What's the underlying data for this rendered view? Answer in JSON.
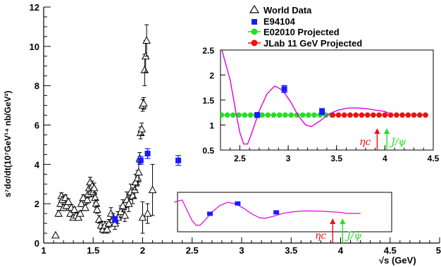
{
  "chart_data": {
    "type": "scatter",
    "xlabel": "√s (GeV)",
    "ylabel": "s⁷dσ/dt(10⁷GeV¹⁴ nb/GeV²)",
    "xlim": [
      1,
      5
    ],
    "ylim": [
      0,
      12
    ],
    "xticks": [
      "1",
      "1.5",
      "2",
      "2.5",
      "3",
      "3.5",
      "4",
      "4.5",
      "5"
    ],
    "yticks": [
      "0",
      "2",
      "4",
      "6",
      "8",
      "10",
      "12"
    ],
    "legend": [
      {
        "label": "World Data",
        "marker": "open-triangle",
        "color": "#000000"
      },
      {
        "label": "E94104",
        "marker": "square",
        "color": "#1a1aff"
      },
      {
        "label": "E02010 Projected",
        "marker": "circle",
        "color": "#22e022"
      },
      {
        "label": "JLab 11 GeV Projected",
        "marker": "circle",
        "color": "#ee1111"
      }
    ],
    "series": [
      {
        "name": "World Data",
        "points": [
          [
            1.12,
            0.4,
            0
          ],
          [
            1.15,
            1.5,
            0.15
          ],
          [
            1.17,
            2.0,
            0.15
          ],
          [
            1.18,
            2.4,
            0.15
          ],
          [
            1.19,
            2.2,
            0.15
          ],
          [
            1.2,
            1.8,
            0.15
          ],
          [
            1.22,
            2.3,
            0.15
          ],
          [
            1.23,
            1.9,
            0.15
          ],
          [
            1.25,
            2.1,
            0.15
          ],
          [
            1.27,
            1.5,
            0.15
          ],
          [
            1.28,
            1.8,
            0.15
          ],
          [
            1.3,
            1.3,
            0.12
          ],
          [
            1.31,
            1.7,
            0.12
          ],
          [
            1.33,
            1.4,
            0.12
          ],
          [
            1.35,
            1.3,
            0.12
          ],
          [
            1.37,
            1.5,
            0.12
          ],
          [
            1.38,
            2.0,
            0.15
          ],
          [
            1.4,
            2.3,
            0.15
          ],
          [
            1.42,
            1.8,
            0.15
          ],
          [
            1.44,
            2.2,
            0.2
          ],
          [
            1.45,
            2.5,
            0.2
          ],
          [
            1.46,
            2.8,
            0.25
          ],
          [
            1.47,
            3.1,
            0.25
          ],
          [
            1.48,
            2.6,
            0.25
          ],
          [
            1.49,
            2.9,
            0.25
          ],
          [
            1.5,
            2.6,
            0.25
          ],
          [
            1.51,
            2.8,
            0.25
          ],
          [
            1.52,
            2.3,
            0.25
          ],
          [
            1.53,
            2.0,
            0.2
          ],
          [
            1.54,
            1.7,
            0.2
          ],
          [
            1.56,
            1.2,
            0.2
          ],
          [
            1.58,
            0.9,
            0.2
          ],
          [
            1.6,
            0.7,
            0.2
          ],
          [
            1.62,
            0.9,
            0.2
          ],
          [
            1.64,
            0.7,
            0.2
          ],
          [
            1.66,
            1.0,
            0.2
          ],
          [
            1.68,
            1.5,
            0.3
          ],
          [
            1.7,
            1.2,
            0.3
          ],
          [
            1.72,
            1.0,
            0.3
          ],
          [
            1.75,
            1.3,
            0.3
          ],
          [
            1.78,
            1.6,
            0.3
          ],
          [
            1.8,
            1.9,
            0.3
          ],
          [
            1.82,
            1.4,
            0.3
          ],
          [
            1.84,
            2.2,
            0.4
          ],
          [
            1.86,
            2.0,
            0.4
          ],
          [
            1.88,
            2.6,
            0.4
          ],
          [
            1.9,
            2.4,
            0.4
          ],
          [
            1.92,
            2.7,
            0.4
          ],
          [
            1.93,
            3.1,
            0.4
          ],
          [
            1.95,
            3.3,
            0.4
          ],
          [
            1.96,
            3.6,
            0.5
          ],
          [
            1.97,
            4.3,
            0.3
          ],
          [
            1.98,
            5.6,
            0.3
          ],
          [
            1.99,
            5.8,
            0.3
          ],
          [
            2.0,
            7.0,
            0.3
          ],
          [
            2.01,
            7.1,
            0.3
          ],
          [
            2.02,
            8.8,
            0.8
          ],
          [
            2.03,
            9.5,
            0.8
          ],
          [
            2.04,
            10.3,
            0.8
          ],
          [
            2.0,
            1.3,
            0.8
          ],
          [
            2.05,
            1.5,
            0.5
          ],
          [
            2.1,
            2.7,
            1.3
          ]
        ]
      },
      {
        "name": "E94104",
        "points": [
          [
            1.72,
            1.2,
            0.15
          ],
          [
            1.98,
            4.2,
            0.2
          ],
          [
            2.05,
            4.55,
            0.25
          ],
          [
            2.36,
            4.2,
            0.25
          ]
        ]
      }
    ],
    "inset": {
      "xlim": [
        2.3,
        4.5
      ],
      "ylim": [
        0.5,
        2.5
      ],
      "xticks": [
        "2.5",
        "3",
        "3.5",
        "4",
        "4.5"
      ],
      "yticks": [
        "0.5",
        "1",
        "1.5",
        "2",
        "2.5"
      ],
      "e94104": [
        [
          2.68,
          1.2,
          0.05
        ],
        [
          2.96,
          1.72,
          0.07
        ],
        [
          3.35,
          1.27,
          0.06
        ]
      ],
      "e02010_projected": {
        "x_from": 2.3,
        "x_to": 3.46,
        "y": 1.2
      },
      "jlab11_projected": {
        "x_from": 3.46,
        "x_to": 4.42,
        "y": 1.2
      },
      "curve": [
        [
          2.3,
          2.6
        ],
        [
          2.4,
          1.9
        ],
        [
          2.46,
          1.25
        ],
        [
          2.5,
          0.85
        ],
        [
          2.54,
          0.62
        ],
        [
          2.58,
          0.62
        ],
        [
          2.62,
          0.82
        ],
        [
          2.7,
          1.28
        ],
        [
          2.78,
          1.62
        ],
        [
          2.86,
          1.78
        ],
        [
          2.94,
          1.7
        ],
        [
          3.02,
          1.48
        ],
        [
          3.1,
          1.2
        ],
        [
          3.18,
          1.0
        ],
        [
          3.24,
          0.97
        ],
        [
          3.32,
          1.07
        ],
        [
          3.42,
          1.22
        ],
        [
          3.52,
          1.3
        ],
        [
          3.62,
          1.34
        ],
        [
          3.72,
          1.34
        ],
        [
          3.8,
          1.33
        ],
        [
          3.9,
          1.3
        ],
        [
          4.0,
          1.27
        ],
        [
          4.06,
          1.22
        ]
      ]
    },
    "annotations": [
      {
        "label": "ηc",
        "x": 3.92,
        "color": "#ee1111"
      },
      {
        "label": "J/ψ",
        "x": 4.02,
        "color": "#22e022"
      }
    ]
  }
}
